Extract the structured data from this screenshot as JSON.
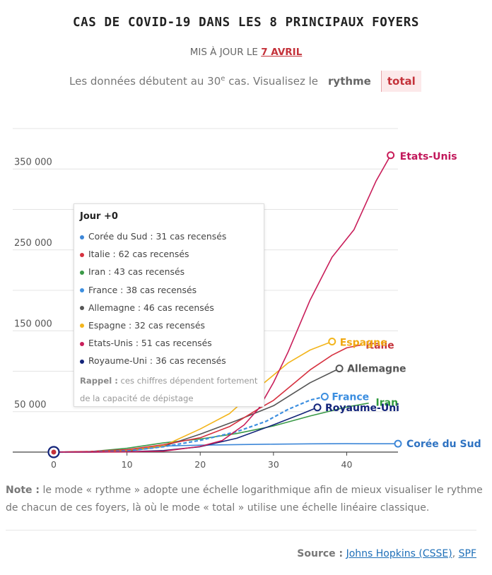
{
  "header": {
    "title": "CAS DE COVID-19 DANS LES 8 PRINCIPAUX FOYERS",
    "updated_prefix": "MIS À JOUR LE",
    "updated_date": "7 AVRIL",
    "intro_before": "Les données débutent au 30",
    "intro_sup": "e",
    "intro_after": " cas. Visualisez le",
    "toggle_rythme": "rythme",
    "toggle_total": "total"
  },
  "tooltip": {
    "heading": "Jour +0",
    "rows": [
      "Corée du Sud : 31 cas recensés",
      "Italie : 62 cas recensés",
      "Iran : 43 cas recensés",
      "France : 38 cas recensés",
      "Allemagne : 46 cas recensés",
      "Espagne : 32 cas recensés",
      "Etats-Unis : 51 cas recensés",
      "Royaume-Uni : 36 cas recensés"
    ],
    "rappel_label": "Rappel :",
    "rappel_text": " ces chiffres dépendent fortement de la capacité de dépistage"
  },
  "note": {
    "label": "Note :",
    "text": " le mode « rythme » adopte une échelle logarithmique afin de mieux visualiser le rythme de chacun de ces foyers, là où le mode « total » utilise une échelle linéaire classique."
  },
  "source": {
    "label": "Source :",
    "link1": "Johns Hopkins (CSSE)",
    "sep": ",",
    "link2": "SPF"
  },
  "chart_data": {
    "type": "line",
    "xlim": [
      0,
      47
    ],
    "ylim": [
      0,
      400000
    ],
    "x_ticks": [
      0,
      10,
      20,
      30,
      40
    ],
    "y_ticks": [
      50000,
      150000,
      250000,
      350000
    ],
    "y_tick_labels": [
      "50 000",
      "150 000",
      "250 000",
      "350 000"
    ],
    "grid": true,
    "series": [
      {
        "name": "Corée du Sud",
        "color": "#3d87d8",
        "label_color": "#2f73c2",
        "dashed": false,
        "x": [
          0,
          5,
          10,
          15,
          20,
          25,
          30,
          35,
          40,
          44,
          47
        ],
        "y": [
          31,
          200,
          3000,
          7500,
          8600,
          9300,
          9800,
          10200,
          10400,
          10300,
          10330
        ]
      },
      {
        "name": "Italie",
        "color": "#d6313f",
        "label_color": "#c4323a",
        "dashed": false,
        "x": [
          0,
          5,
          10,
          15,
          20,
          24,
          28,
          30,
          33,
          35,
          38,
          40,
          42
        ],
        "y": [
          62,
          900,
          3100,
          9200,
          17700,
          31500,
          53600,
          63900,
          86500,
          101700,
          119800,
          128900,
          132500
        ]
      },
      {
        "name": "Iran",
        "color": "#3a9a47",
        "label_color": "#2f9a3d",
        "dashed": false,
        "x": [
          0,
          5,
          10,
          15,
          20,
          25,
          30,
          35,
          40,
          43
        ],
        "y": [
          43,
          590,
          4750,
          11400,
          16200,
          23000,
          32300,
          44600,
          55700,
          60500
        ]
      },
      {
        "name": "France",
        "color": "#3d8fe0",
        "label_color": "#3b8ee0",
        "dashed": true,
        "x": [
          0,
          5,
          10,
          15,
          20,
          25,
          29,
          32,
          35,
          37
        ],
        "y": [
          38,
          130,
          1400,
          6600,
          14500,
          25200,
          38100,
          52800,
          64300,
          68600
        ]
      },
      {
        "name": "Allemagne",
        "color": "#555555",
        "label_color": "#555555",
        "dashed": false,
        "x": [
          0,
          5,
          10,
          15,
          20,
          25,
          30,
          35,
          39
        ],
        "y": [
          46,
          200,
          1100,
          7200,
          22200,
          39000,
          57300,
          85800,
          103400
        ]
      },
      {
        "name": "Espagne",
        "color": "#f3b51c",
        "label_color": "#f0a812",
        "dashed": false,
        "x": [
          0,
          5,
          10,
          15,
          20,
          24,
          28,
          32,
          35,
          38
        ],
        "y": [
          32,
          670,
          2100,
          7750,
          28600,
          47600,
          80100,
          110200,
          126200,
          136700
        ]
      },
      {
        "name": "Etats-Unis",
        "color": "#c91e5a",
        "label_color": "#c2185b",
        "dashed": false,
        "x": [
          0,
          5,
          10,
          15,
          20,
          23,
          26,
          28,
          30,
          32,
          35,
          38,
          41,
          44,
          46
        ],
        "y": [
          51,
          80,
          300,
          1100,
          7000,
          14200,
          33600,
          54000,
          86000,
          123800,
          188000,
          241000,
          275000,
          335000,
          367000
        ]
      },
      {
        "name": "Royaume-Uni",
        "color": "#13247a",
        "label_color": "#13247a",
        "dashed": false,
        "x": [
          0,
          5,
          10,
          15,
          20,
          25,
          30,
          34,
          36
        ],
        "y": [
          36,
          50,
          450,
          1950,
          6650,
          17100,
          33700,
          47800,
          55200
        ]
      }
    ]
  }
}
